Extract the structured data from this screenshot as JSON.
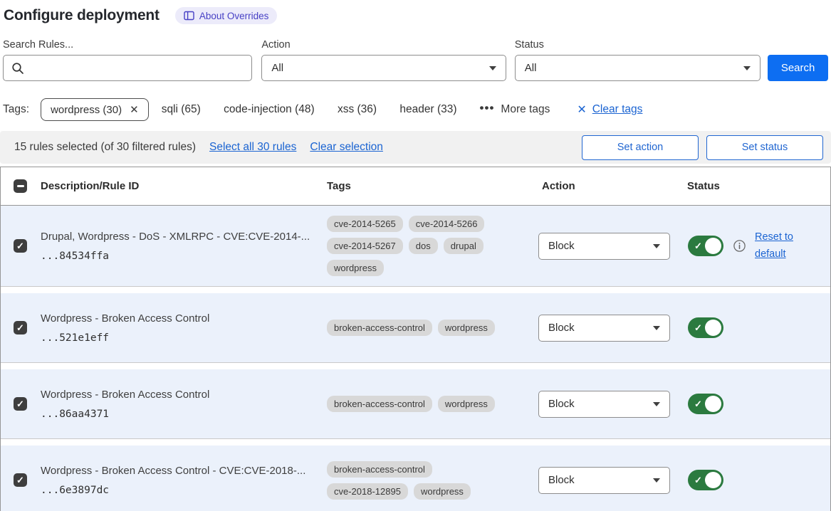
{
  "header": {
    "title": "Configure deployment",
    "badge_label": "About Overrides"
  },
  "filters": {
    "search_label": "Search Rules...",
    "action_label": "Action",
    "action_value": "All",
    "status_label": "Status",
    "status_value": "All",
    "search_button": "Search"
  },
  "tags_bar": {
    "label": "Tags:",
    "selected_tag": "wordpress (30)",
    "options": [
      "sqli (65)",
      "code-injection (48)",
      "xss (36)",
      "header (33)"
    ],
    "more_tags": "More tags",
    "clear_tags": "Clear tags"
  },
  "selection_bar": {
    "summary": "15 rules selected (of 30 filtered rules)",
    "select_all": "Select all 30 rules",
    "clear_selection": "Clear selection",
    "set_action": "Set action",
    "set_status": "Set status"
  },
  "table": {
    "columns": [
      "Description/Rule ID",
      "Tags",
      "Action",
      "Status"
    ],
    "rows": [
      {
        "description": "Drupal, Wordpress - DoS - XMLRPC - CVE:CVE-2014-...",
        "rule_id": "...84534ffa",
        "tags": [
          "cve-2014-5265",
          "cve-2014-5266",
          "cve-2014-5267",
          "dos",
          "drupal",
          "wordpress"
        ],
        "action": "Block",
        "enabled": true,
        "reset_link": "Reset to default"
      },
      {
        "description": "Wordpress - Broken Access Control",
        "rule_id": "...521e1eff",
        "tags": [
          "broken-access-control",
          "wordpress"
        ],
        "action": "Block",
        "enabled": true
      },
      {
        "description": "Wordpress - Broken Access Control",
        "rule_id": "...86aa4371",
        "tags": [
          "broken-access-control",
          "wordpress"
        ],
        "action": "Block",
        "enabled": true
      },
      {
        "description": "Wordpress - Broken Access Control - CVE:CVE-2018-...",
        "rule_id": "...6e3897dc",
        "tags": [
          "broken-access-control",
          "cve-2018-12895",
          "wordpress"
        ],
        "action": "Block",
        "enabled": true
      }
    ]
  },
  "colors": {
    "accent_blue": "#0d6ef2",
    "link_blue": "#1b64d2",
    "toggle_green": "#2b7a3f",
    "row_selected_bg": "#ebf1fb",
    "badge_bg": "#ecebfa",
    "badge_text": "#4741c5",
    "chip_bg": "#d8d8d8"
  }
}
